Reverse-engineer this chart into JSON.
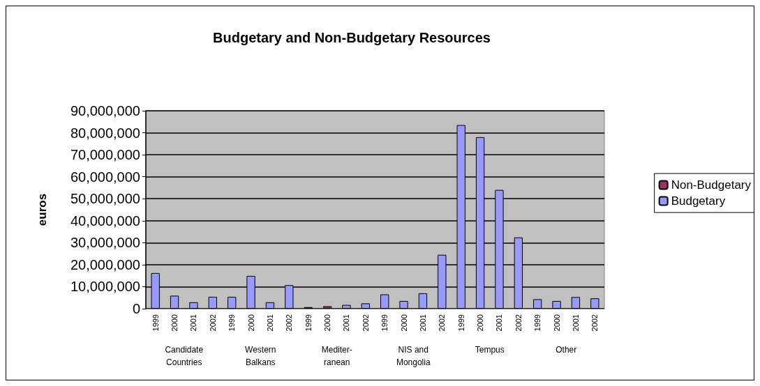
{
  "chart_data": {
    "type": "bar",
    "title": "Budgetary and Non-Budgetary Resources",
    "ylabel": "euros",
    "categories": [
      "1999",
      "2000",
      "2001",
      "2002",
      "1999",
      "2000",
      "2001",
      "2002",
      "1999",
      "2000",
      "2001",
      "2002",
      "1999",
      "2000",
      "2001",
      "2002",
      "1999",
      "2000",
      "2001",
      "2002",
      "1999",
      "2000",
      "2001",
      "2002"
    ],
    "annotations": [
      "Candidate\nCountries",
      "Western\nBalkans",
      "Mediter-\nranean",
      "NIS and\nMongolia",
      "Tempus",
      "Other"
    ],
    "stacked": true,
    "series": [
      {
        "name": "Budgetary",
        "color": "#9999ff",
        "values": [
          16200000,
          5900000,
          2900000,
          5400000,
          5400000,
          14900000,
          2900000,
          10700000,
          null,
          null,
          1700000,
          2400000,
          6500000,
          3500000,
          7000000,
          24500000,
          83500000,
          78000000,
          54000000,
          32400000,
          4300000,
          3500000,
          5300000,
          4700000
        ]
      },
      {
        "name": "Non-Budgetary",
        "color": "#993366",
        "values": [
          null,
          null,
          null,
          null,
          null,
          null,
          null,
          null,
          700000,
          1100000,
          null,
          null,
          null,
          null,
          null,
          null,
          null,
          null,
          null,
          null,
          null,
          null,
          null,
          null
        ]
      }
    ],
    "ylim": [
      0,
      90000000
    ],
    "yticks": [
      0,
      {
        "value": 10000000,
        "label": "10,000,000"
      },
      {
        "value": 20000000,
        "label": "20,000,000"
      },
      {
        "value": 30000000,
        "label": "30,000,000"
      },
      {
        "value": 40000000,
        "label": "40,000,000"
      },
      {
        "value": 50000000,
        "label": "50,000,000"
      },
      {
        "value": 60000000,
        "label": "60,000,000"
      },
      {
        "value": 70000000,
        "label": "70,000,000"
      },
      {
        "value": 80000000,
        "label": "80,000,000"
      },
      {
        "value": 90000000,
        "label": "90,000,000"
      }
    ],
    "grid": "y",
    "legend": "right"
  }
}
